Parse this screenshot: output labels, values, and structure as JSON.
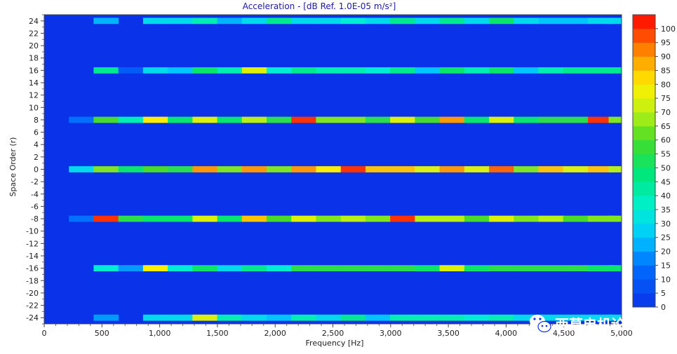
{
  "chart_data": {
    "type": "heatmap",
    "title": "Acceleration - [dB Ref. 1.0E-05 m/s²]",
    "xlabel": "Frequency [Hz]",
    "ylabel": "Space Order (r)",
    "xlim": [
      0,
      5000
    ],
    "ylim": [
      -25,
      25
    ],
    "x_ticks": [
      "0",
      "500",
      "1,000",
      "1,500",
      "2,000",
      "2,500",
      "3,000",
      "3,500",
      "4,000",
      "4,500",
      "5,000"
    ],
    "y_ticks": [
      "24",
      "22",
      "20",
      "18",
      "16",
      "14",
      "12",
      "10",
      "8",
      "6",
      "4",
      "2",
      "0",
      "-2",
      "-4",
      "-6",
      "-8",
      "-10",
      "-12",
      "-14",
      "-16",
      "-18",
      "-20",
      "-22",
      "-24"
    ],
    "colorbar": {
      "min": 0,
      "max": 105,
      "ticks": [
        "100",
        "95",
        "90",
        "85",
        "80",
        "75",
        "70",
        "65",
        "60",
        "55",
        "50",
        "45",
        "40",
        "35",
        "30",
        "25",
        "20",
        "15",
        "10",
        "5",
        "0"
      ]
    },
    "background_value": 0,
    "bin_width_hz": 214,
    "bin_centers_hz": [
      107,
      321,
      535,
      749,
      963,
      1177,
      1391,
      1605,
      1819,
      2033,
      2247,
      2461,
      2675,
      2889,
      3103,
      3317,
      3531,
      3745,
      3959,
      4173,
      4387,
      4601,
      4815,
      4995
    ],
    "rows": [
      {
        "order": 24,
        "values": [
          0,
          0,
          23,
          0,
          30,
          30,
          40,
          23,
          30,
          45,
          30,
          30,
          35,
          30,
          45,
          30,
          45,
          30,
          50,
          30,
          25,
          25,
          30,
          30
        ]
      },
      {
        "order": 16,
        "values": [
          0,
          0,
          45,
          10,
          30,
          25,
          50,
          40,
          75,
          35,
          45,
          40,
          40,
          35,
          45,
          25,
          50,
          40,
          50,
          25,
          40,
          45,
          45,
          45
        ]
      },
      {
        "order": 8,
        "values": [
          0,
          15,
          60,
          40,
          80,
          50,
          75,
          50,
          70,
          55,
          100,
          65,
          65,
          55,
          75,
          60,
          90,
          50,
          75,
          50,
          55,
          55,
          100,
          65
        ]
      },
      {
        "order": 0,
        "values": [
          0,
          30,
          65,
          50,
          60,
          55,
          90,
          65,
          90,
          65,
          90,
          80,
          100,
          85,
          85,
          75,
          90,
          75,
          95,
          65,
          85,
          75,
          85,
          70
        ]
      },
      {
        "order": -8,
        "values": [
          0,
          15,
          100,
          55,
          50,
          50,
          75,
          50,
          85,
          60,
          75,
          65,
          70,
          65,
          100,
          70,
          70,
          60,
          75,
          65,
          70,
          60,
          65,
          65
        ]
      },
      {
        "order": -16,
        "values": [
          0,
          0,
          35,
          20,
          80,
          35,
          50,
          30,
          45,
          35,
          55,
          55,
          55,
          55,
          55,
          50,
          75,
          50,
          55,
          55,
          55,
          55,
          50,
          50
        ]
      },
      {
        "order": -24,
        "values": [
          0,
          0,
          20,
          0,
          30,
          30,
          75,
          40,
          30,
          25,
          40,
          30,
          45,
          25,
          40,
          40,
          40,
          35,
          40,
          30,
          30,
          30,
          30,
          30
        ]
      }
    ],
    "grid": false,
    "legend": "right colorbar"
  },
  "watermark": "西莫电机论坛"
}
